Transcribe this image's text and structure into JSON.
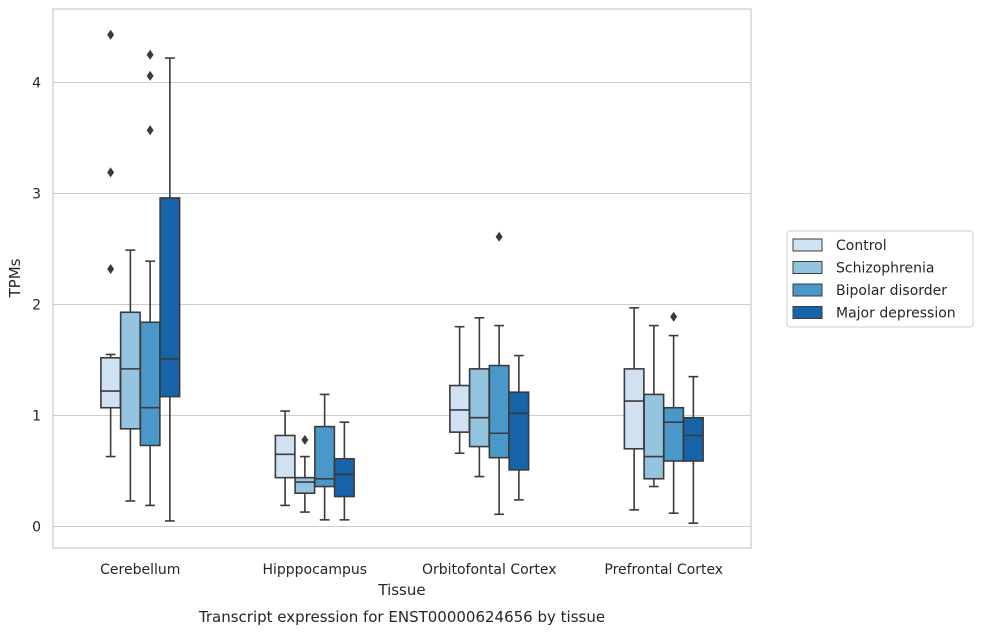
{
  "chart_data": {
    "type": "box",
    "caption": "Transcript expression for ENST00000624656 by tissue",
    "xlabel": "Tissue",
    "ylabel": "TPMs",
    "ylim": [
      -0.18,
      4.65
    ],
    "yticks": [
      0,
      1,
      2,
      3,
      4
    ],
    "grid": true,
    "legend_position": "right",
    "categories": [
      "Cerebellum",
      "Hipppocampus",
      "Orbitofontal Cortex",
      "Prefrontal Cortex"
    ],
    "series": [
      {
        "name": "Control",
        "color": "#d0e1f2",
        "boxes": [
          {
            "whisker_low": 0.63,
            "q1": 1.07,
            "median": 1.22,
            "q3": 1.52,
            "whisker_high": 1.55,
            "outliers": [
              2.32,
              3.19,
              4.43
            ]
          },
          {
            "whisker_low": 0.19,
            "q1": 0.44,
            "median": 0.65,
            "q3": 0.82,
            "whisker_high": 1.04,
            "outliers": []
          },
          {
            "whisker_low": 0.66,
            "q1": 0.85,
            "median": 1.05,
            "q3": 1.27,
            "whisker_high": 1.8,
            "outliers": []
          },
          {
            "whisker_low": 0.15,
            "q1": 0.7,
            "median": 1.13,
            "q3": 1.42,
            "whisker_high": 1.97,
            "outliers": []
          }
        ]
      },
      {
        "name": "Schizophrenia",
        "color": "#94c4df",
        "boxes": [
          {
            "whisker_low": 0.23,
            "q1": 0.88,
            "median": 1.42,
            "q3": 1.93,
            "whisker_high": 2.49,
            "outliers": []
          },
          {
            "whisker_low": 0.13,
            "q1": 0.3,
            "median": 0.4,
            "q3": 0.44,
            "whisker_high": 0.63,
            "outliers": [
              0.78
            ]
          },
          {
            "whisker_low": 0.45,
            "q1": 0.72,
            "median": 0.98,
            "q3": 1.42,
            "whisker_high": 1.88,
            "outliers": []
          },
          {
            "whisker_low": 0.36,
            "q1": 0.43,
            "median": 0.63,
            "q3": 1.19,
            "whisker_high": 1.81,
            "outliers": []
          }
        ]
      },
      {
        "name": "Bipolar disorder",
        "color": "#4a98c9",
        "boxes": [
          {
            "whisker_low": 0.19,
            "q1": 0.73,
            "median": 1.07,
            "q3": 1.84,
            "whisker_high": 2.39,
            "outliers": [
              3.57,
              4.06,
              4.25
            ]
          },
          {
            "whisker_low": 0.06,
            "q1": 0.36,
            "median": 0.43,
            "q3": 0.9,
            "whisker_high": 1.19,
            "outliers": []
          },
          {
            "whisker_low": 0.11,
            "q1": 0.62,
            "median": 0.84,
            "q3": 1.45,
            "whisker_high": 1.81,
            "outliers": [
              2.61
            ]
          },
          {
            "whisker_low": 0.12,
            "q1": 0.59,
            "median": 0.94,
            "q3": 1.07,
            "whisker_high": 1.72,
            "outliers": [
              1.89
            ]
          }
        ]
      },
      {
        "name": "Major depression",
        "color": "#1764ab",
        "boxes": [
          {
            "whisker_low": 0.05,
            "q1": 1.17,
            "median": 1.51,
            "q3": 2.96,
            "whisker_high": 4.22,
            "outliers": []
          },
          {
            "whisker_low": 0.06,
            "q1": 0.27,
            "median": 0.47,
            "q3": 0.61,
            "whisker_high": 0.94,
            "outliers": []
          },
          {
            "whisker_low": 0.24,
            "q1": 0.51,
            "median": 1.02,
            "q3": 1.21,
            "whisker_high": 1.54,
            "outliers": []
          },
          {
            "whisker_low": 0.03,
            "q1": 0.59,
            "median": 0.82,
            "q3": 0.98,
            "whisker_high": 1.35,
            "outliers": []
          }
        ]
      }
    ]
  }
}
